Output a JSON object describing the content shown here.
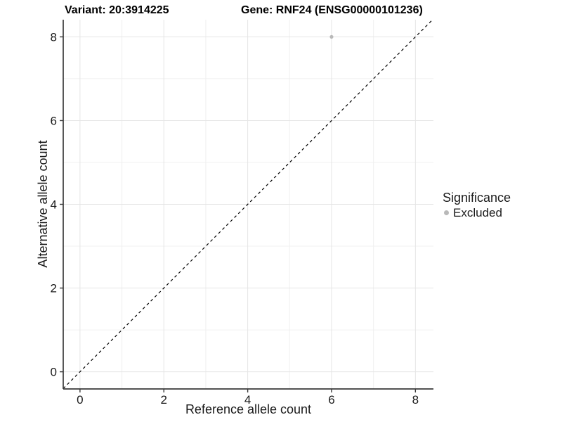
{
  "chart_data": {
    "type": "scatter",
    "title_left": "Variant: 20:3914225",
    "title_right": "Gene: RNF24 (ENSG00000101236)",
    "xlabel": "Reference allele count",
    "ylabel": "Alternative allele count",
    "xlim": [
      -0.4,
      8.43
    ],
    "ylim": [
      -0.41,
      8.41
    ],
    "x_ticks": [
      0,
      2,
      4,
      6,
      8
    ],
    "y_ticks": [
      0,
      2,
      4,
      6,
      8
    ],
    "x_minor_gridlines": [
      1,
      3,
      5,
      7
    ],
    "y_minor_gridlines": [
      1,
      3,
      5,
      7
    ],
    "grid": true,
    "legend_position": "right",
    "points": [
      {
        "x": 6,
        "y": 8,
        "series": "Excluded"
      }
    ],
    "identity_line": {
      "type": "y=x",
      "style": "dashed"
    },
    "legend": {
      "title": "Significance",
      "entries": [
        {
          "label": "Excluded",
          "color": "#b9b9b9"
        }
      ]
    },
    "colors": {
      "point": "#b9b9b9",
      "grid_major": "#e5e5e5",
      "grid_minor": "#f0f0f0",
      "axis_line": "#3a3a3a",
      "tick_text": "#1a1a1a",
      "identity_line": "#000000"
    }
  }
}
